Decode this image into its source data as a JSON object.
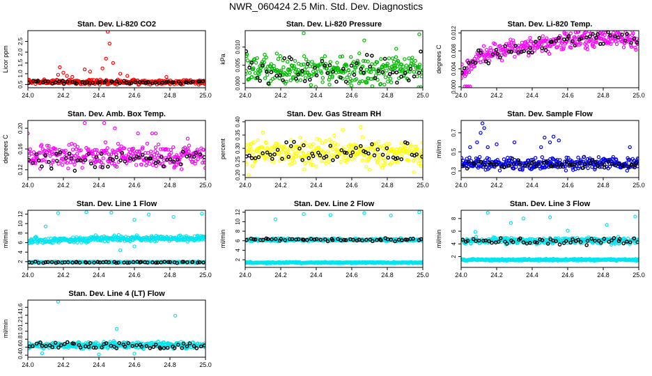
{
  "figure_title": "NWR_060424  2.5 Min. Std. Dev. Diagnostics",
  "chart_data": [
    {
      "type": "scatter",
      "title": "Stan. Dev. Li-820 CO2",
      "ylabel": "Licor ppm",
      "xlim": [
        24.0,
        25.0
      ],
      "ylim": [
        0.35,
        3.0
      ],
      "x_ticks": [
        "24.0",
        "24.2",
        "24.4",
        "24.6",
        "24.8",
        "25.0"
      ],
      "y_ticks": [
        "0.5",
        "1.0",
        "1.5",
        "2.0",
        "2.5"
      ],
      "series": [
        {
          "color": "#ff0000",
          "base": 0.62,
          "spread": 0.09,
          "points": [
            [
              24.17,
              0.95
            ],
            [
              24.18,
              1.3
            ],
            [
              24.2,
              1.05
            ],
            [
              24.22,
              0.9
            ],
            [
              24.25,
              0.85
            ],
            [
              24.32,
              1.2
            ],
            [
              24.35,
              1.1
            ],
            [
              24.42,
              1.25
            ],
            [
              24.44,
              1.7
            ],
            [
              24.45,
              2.95
            ],
            [
              24.46,
              2.4
            ],
            [
              24.48,
              1.5
            ],
            [
              24.52,
              1.0
            ],
            [
              24.56,
              0.9
            ],
            [
              24.78,
              0.85
            ]
          ]
        },
        {
          "color": "#000000",
          "base": 0.6,
          "spread": 0.06,
          "points": []
        }
      ]
    },
    {
      "type": "scatter",
      "title": "Stan. Dev. Li-820 Pressure",
      "ylabel": "kPa",
      "xlim": [
        24.0,
        25.0
      ],
      "ylim": [
        -0.0012,
        0.0145
      ],
      "x_ticks": [
        "24.0",
        "24.2",
        "24.4",
        "24.6",
        "24.8",
        "25.0"
      ],
      "y_ticks": [
        "0.000",
        "0.005",
        "0.010"
      ],
      "series": [
        {
          "color": "#00bb00",
          "base": 0.0035,
          "spread": 0.0035,
          "points": [
            [
              24.33,
              0.0138
            ],
            [
              24.48,
              0.0025
            ],
            [
              24.67,
              0.0118
            ],
            [
              24.98,
              0.0135
            ],
            [
              24.85,
              0.0095
            ]
          ]
        },
        {
          "color": "#000000",
          "base": 0.0035,
          "spread": 0.0035,
          "points": []
        }
      ]
    },
    {
      "type": "scatter",
      "title": "Stan. Dev. Li-820 Temp.",
      "ylabel": "degrees C",
      "xlim": [
        24.0,
        25.0
      ],
      "ylim": [
        -0.0002,
        0.0125
      ],
      "x_ticks": [
        "24.0",
        "24.2",
        "24.4",
        "24.6",
        "24.8",
        "25.0"
      ],
      "y_ticks": [
        "0.000",
        "0.004",
        "0.008",
        "0.012"
      ],
      "series": [
        {
          "color": "#ff00ff",
          "base": 0.008,
          "spread": 0.0016,
          "points": [
            [
              24.02,
              0.0001
            ],
            [
              24.03,
              0.0001
            ],
            [
              24.04,
              0.0001
            ],
            [
              24.05,
              0.0001
            ],
            [
              24.03,
              0.004
            ],
            [
              24.05,
              0.005
            ],
            [
              24.66,
              0.0122
            ],
            [
              24.7,
              0.0121
            ]
          ]
        },
        {
          "color": "#000000",
          "base": 0.008,
          "spread": 0.0016,
          "points": []
        }
      ]
    },
    {
      "type": "scatter",
      "title": "Stan. Dev. Amb. Box Temp.",
      "ylabel": "degrees C",
      "xlim": [
        24.0,
        25.0
      ],
      "ylim": [
        0.105,
        0.215
      ],
      "x_ticks": [
        "24.0",
        "24.2",
        "24.4",
        "24.6",
        "24.8",
        "25.0"
      ],
      "y_ticks": [
        "0.12",
        "0.16",
        "0.20"
      ],
      "series": [
        {
          "color": "#ff00ff",
          "base": 0.147,
          "spread": 0.018,
          "points": [
            [
              24.0,
              0.19
            ],
            [
              24.32,
              0.21
            ],
            [
              24.43,
              0.21
            ],
            [
              24.49,
              0.2
            ],
            [
              24.62,
              0.19
            ],
            [
              24.7,
              0.19
            ],
            [
              24.72,
              0.19
            ],
            [
              24.9,
              0.18
            ]
          ]
        },
        {
          "color": "#000000",
          "base": 0.14,
          "spread": 0.015,
          "points": []
        }
      ]
    },
    {
      "type": "scatter",
      "title": "Stan. Dev. Gas Stream RH",
      "ylabel": "percent",
      "xlim": [
        24.0,
        25.0
      ],
      "ylim": [
        0.19,
        0.405
      ],
      "x_ticks": [
        "24.0",
        "24.2",
        "24.4",
        "24.6",
        "24.8",
        "25.0"
      ],
      "y_ticks": [
        "0.20",
        "0.25",
        "0.30",
        "0.35",
        "0.40"
      ],
      "series": [
        {
          "color": "#ffff00",
          "base": 0.285,
          "spread": 0.04,
          "points": [
            [
              24.02,
              0.2
            ],
            [
              24.1,
              0.36
            ],
            [
              24.55,
              0.37
            ],
            [
              24.65,
              0.38
            ],
            [
              24.7,
              0.22
            ],
            [
              24.95,
              0.21
            ]
          ]
        },
        {
          "color": "#000000",
          "base": 0.28,
          "spread": 0.035,
          "points": []
        }
      ]
    },
    {
      "type": "scatter",
      "title": "Stan. Dev. Sample Flow",
      "ylabel": "ml/min",
      "xlim": [
        24.0,
        25.0
      ],
      "ylim": [
        0.23,
        0.83
      ],
      "x_ticks": [
        "24.0",
        "24.2",
        "24.4",
        "24.6",
        "24.8",
        "25.0"
      ],
      "y_ticks": [
        "0.3",
        "0.5",
        "0.7"
      ],
      "series": [
        {
          "color": "#0000ee",
          "base": 0.375,
          "spread": 0.055,
          "points": [
            [
              24.12,
              0.8
            ],
            [
              24.13,
              0.75
            ],
            [
              24.11,
              0.7
            ],
            [
              24.09,
              0.6
            ],
            [
              24.15,
              0.55
            ],
            [
              24.2,
              0.58
            ],
            [
              24.05,
              0.55
            ],
            [
              24.3,
              0.6
            ],
            [
              24.47,
              0.65
            ],
            [
              24.5,
              0.6
            ],
            [
              24.52,
              0.66
            ],
            [
              24.55,
              0.62
            ],
            [
              24.45,
              0.55
            ],
            [
              24.95,
              0.55
            ]
          ]
        },
        {
          "color": "#000000",
          "base": 0.37,
          "spread": 0.04,
          "points": []
        }
      ]
    },
    {
      "type": "scatter",
      "title": "Stan. Dev. Line 1 Flow",
      "ylabel": "ml/min",
      "xlim": [
        24.0,
        25.0
      ],
      "ylim": [
        0.8,
        12.8
      ],
      "x_ticks": [
        "24.0",
        "24.2",
        "24.4",
        "24.6",
        "24.8",
        "25.0"
      ],
      "y_ticks": [
        "2",
        "4",
        "6",
        "8",
        "10",
        "12"
      ],
      "series": [
        {
          "color": "#00e5ee",
          "base": 6.5,
          "spread": 0.5,
          "points": [
            [
              24.1,
              9.4
            ],
            [
              24.17,
              12.2
            ],
            [
              24.33,
              12.4
            ],
            [
              24.47,
              12.3
            ],
            [
              24.6,
              10.8
            ],
            [
              24.68,
              11.9
            ],
            [
              24.82,
              11.4
            ],
            [
              24.98,
              12.1
            ],
            [
              24.6,
              5.2
            ],
            [
              24.52,
              4.4
            ]
          ]
        },
        {
          "color": "#00e5ee",
          "base": 1.9,
          "spread": 0.12,
          "points": []
        },
        {
          "color": "#000000",
          "base": 1.85,
          "spread": 0.12,
          "points": []
        }
      ]
    },
    {
      "type": "scatter",
      "title": "Stan. Dev. Line 2 Flow",
      "ylabel": "ml/min",
      "xlim": [
        24.0,
        25.0
      ],
      "ylim": [
        0.4,
        12.4
      ],
      "x_ticks": [
        "24.0",
        "24.2",
        "24.4",
        "24.6",
        "24.8",
        "25.0"
      ],
      "y_ticks": [
        "2",
        "4",
        "6",
        "8",
        "10",
        "12"
      ],
      "series": [
        {
          "color": "#00e5ee",
          "base": 6.2,
          "spread": 0.25,
          "points": [
            [
              24.17,
              10.5
            ],
            [
              24.33,
              11.6
            ],
            [
              24.48,
              11.4
            ],
            [
              24.67,
              11.8
            ],
            [
              24.82,
              11.3
            ],
            [
              24.98,
              12.0
            ]
          ]
        },
        {
          "color": "#00e5ee",
          "base": 1.4,
          "spread": 0.12,
          "points": []
        },
        {
          "color": "#000000",
          "base": 6.25,
          "spread": 0.25,
          "points": []
        }
      ]
    },
    {
      "type": "scatter",
      "title": "Stan. Dev. Line 3 Flow",
      "ylabel": "ml/min",
      "xlim": [
        24.0,
        25.0
      ],
      "ylim": [
        0.3,
        9.3
      ],
      "x_ticks": [
        "24.0",
        "24.2",
        "24.4",
        "24.6",
        "24.8",
        "25.0"
      ],
      "y_ticks": [
        "2",
        "4",
        "6",
        "8"
      ],
      "series": [
        {
          "color": "#00e5ee",
          "base": 4.5,
          "spread": 0.4,
          "points": [
            [
              24.08,
              5.9
            ],
            [
              24.15,
              8.9
            ],
            [
              24.28,
              7.3
            ],
            [
              24.35,
              8.0
            ],
            [
              24.5,
              8.2
            ],
            [
              24.6,
              6.1
            ],
            [
              24.82,
              7.0
            ],
            [
              24.98,
              8.3
            ]
          ]
        },
        {
          "color": "#00e5ee",
          "base": 1.5,
          "spread": 0.12,
          "points": []
        },
        {
          "color": "#000000",
          "base": 4.4,
          "spread": 0.45,
          "points": []
        }
      ]
    },
    {
      "type": "scatter",
      "title": "Stan. Dev. Line 4 (LT) Flow",
      "ylabel": "ml/min",
      "xlim": [
        24.0,
        25.0
      ],
      "ylim": [
        0.35,
        1.78
      ],
      "x_ticks": [
        "24.0",
        "24.2",
        "24.4",
        "24.6",
        "24.8",
        "25.0"
      ],
      "y_ticks": [
        "0.4",
        "0.6",
        "0.8",
        "1.0",
        "1.2",
        "1.4",
        "1.6"
      ],
      "series": [
        {
          "color": "#00e5ee",
          "base": 0.65,
          "spread": 0.07,
          "points": [
            [
              24.17,
              1.74
            ],
            [
              24.5,
              1.06
            ],
            [
              24.83,
              1.39
            ],
            [
              24.08,
              0.45
            ],
            [
              24.4,
              0.42
            ],
            [
              24.6,
              0.44
            ]
          ]
        },
        {
          "color": "#000000",
          "base": 0.64,
          "spread": 0.07,
          "points": []
        }
      ]
    }
  ]
}
